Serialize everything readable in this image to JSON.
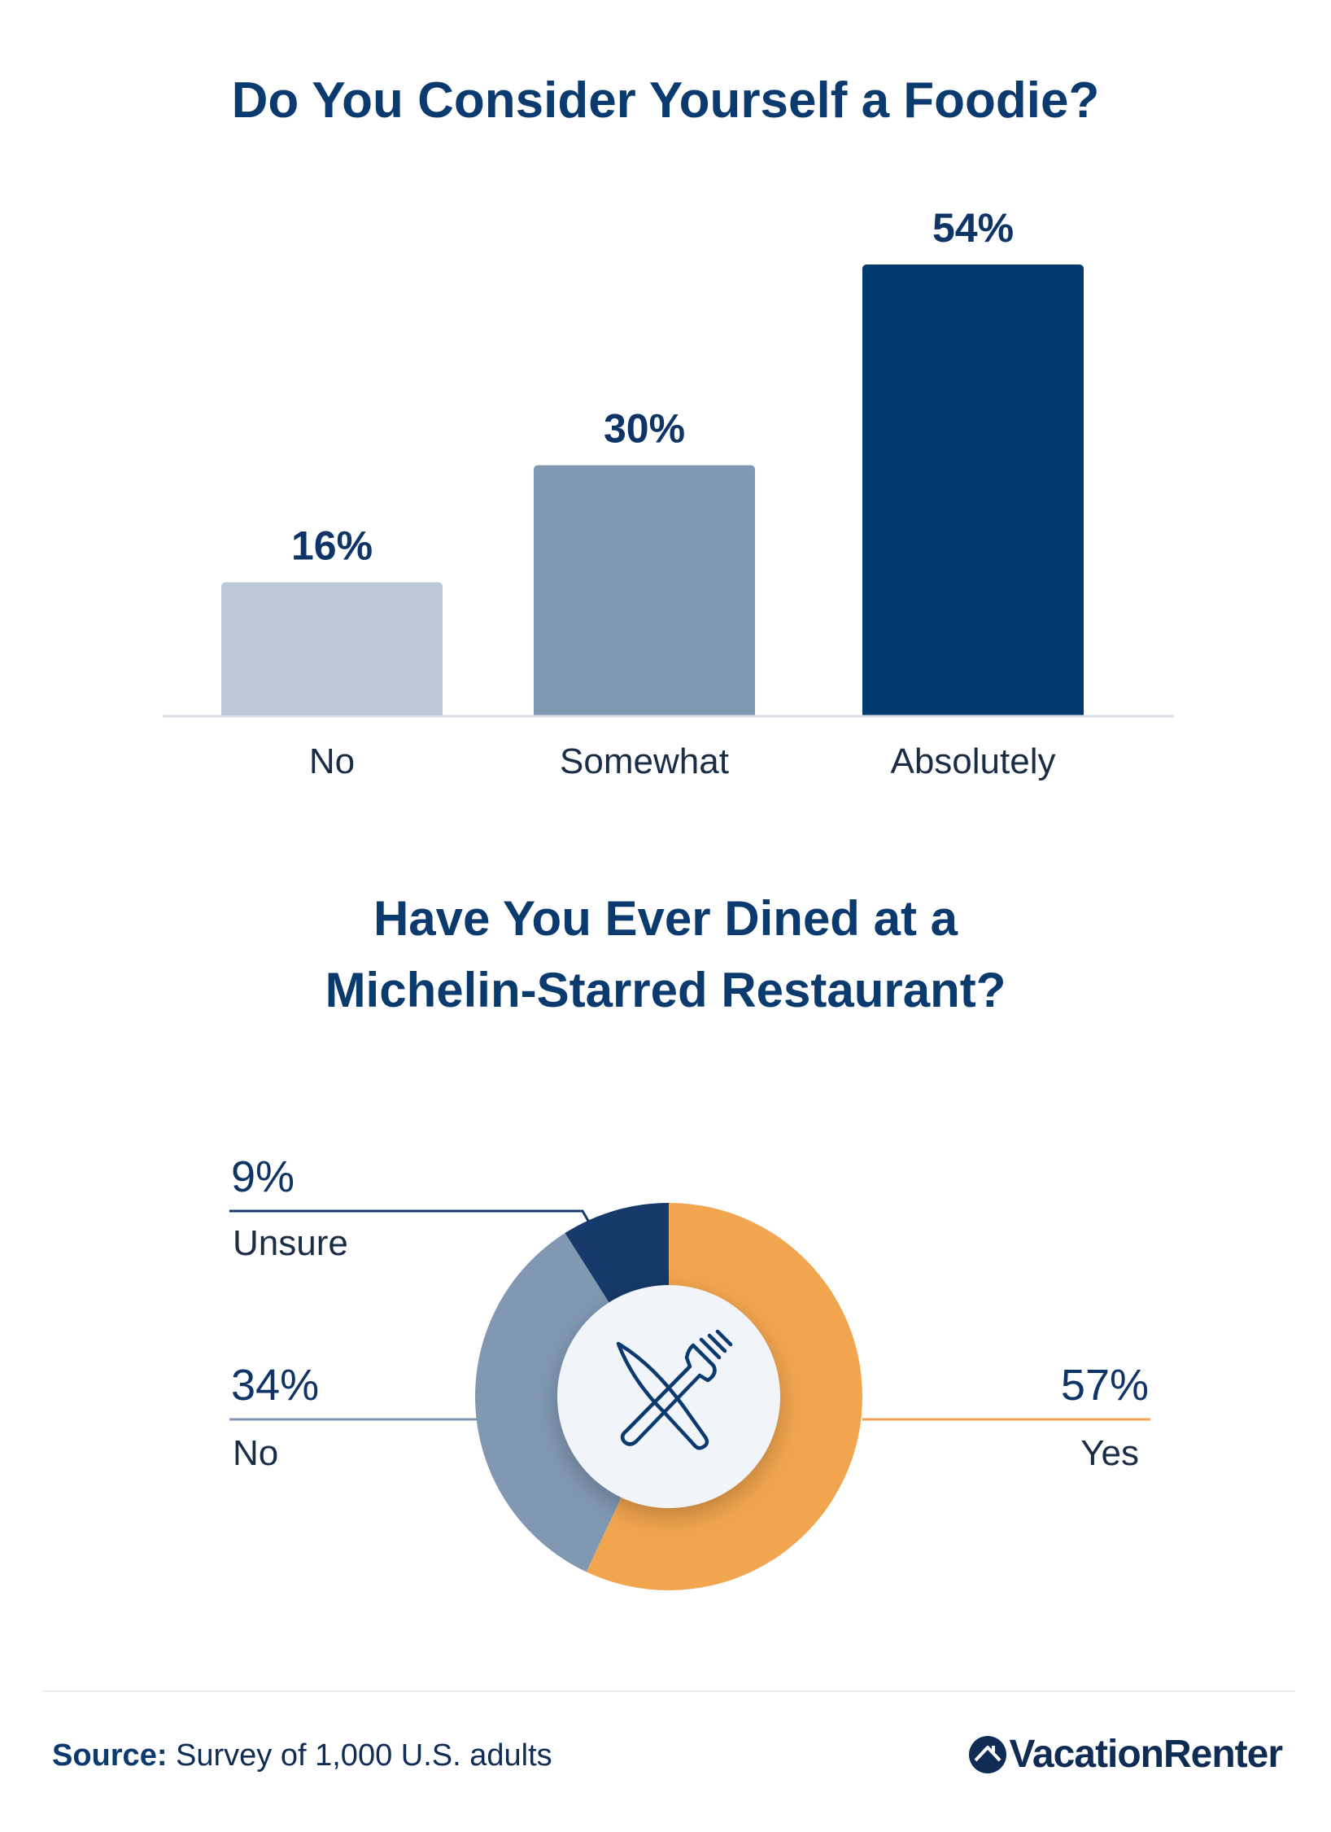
{
  "chart_data": [
    {
      "type": "bar",
      "title": "Do You Consider Yourself a Foodie?",
      "categories": [
        "No",
        "Somewhat",
        "Absolutely"
      ],
      "values": [
        16,
        30,
        54
      ],
      "value_labels": [
        "16%",
        "30%",
        "54%"
      ],
      "ylim": [
        0,
        54
      ],
      "grid": false,
      "colors": [
        "#bac8d7",
        "#8198b3",
        "#023a70"
      ]
    },
    {
      "type": "pie",
      "style": "donut",
      "title": "Have You Ever Dined at a\nMichelin-Starred Restaurant?",
      "slices": [
        {
          "label": "Yes",
          "value": 57,
          "display": "57%",
          "color": "#f1a54f"
        },
        {
          "label": "No",
          "value": 34,
          "display": "34%",
          "color": "#8198b3"
        },
        {
          "label": "Unsure",
          "value": 9,
          "display": "9%",
          "color": "#153a6b"
        }
      ],
      "center_icon": "fork-knife-icon"
    }
  ],
  "footer": {
    "source_label": "Source:",
    "source_text": " Survey of 1,000 U.S. adults",
    "brand": "VacationRenter"
  }
}
